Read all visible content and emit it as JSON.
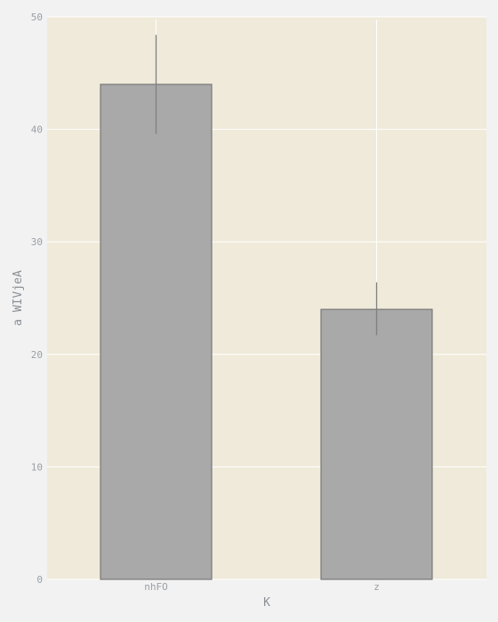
{
  "chart_data": {
    "type": "bar",
    "title": "",
    "xlabel": "K",
    "ylabel": "a WIVjeA",
    "categories": [
      "nhFO",
      "z"
    ],
    "series": [
      {
        "values": [
          44,
          24
        ],
        "error_low": [
          39.6,
          21.7
        ],
        "error_high": [
          48.4,
          26.4
        ]
      }
    ],
    "ylim": [
      0,
      50
    ],
    "yticks": [
      0,
      10,
      20,
      30,
      40,
      50
    ],
    "grid": true,
    "legend": "none",
    "colors": {
      "plot_background": "#f0eada",
      "figure_background": "#f2f2f2",
      "bar_fill": "#a9a9a9",
      "bar_edge": "#777777",
      "error_bar": "#808080",
      "grid": "#ffffff"
    }
  }
}
